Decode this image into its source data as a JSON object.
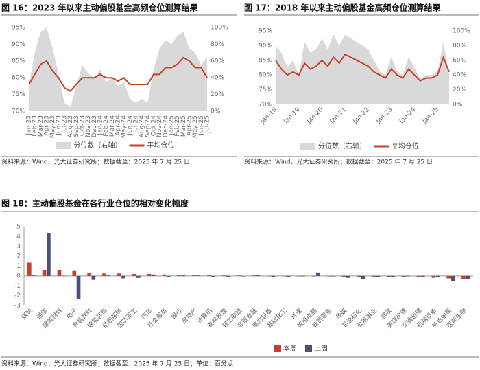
{
  "chart_data": [
    {
      "type": "combo",
      "title": "图 16：2023 年以来主动偏股基金高频仓位测算结果",
      "source": "资料来源：Wind，光大证券研究所；数据截至：2025 年 7 月 25 日",
      "legend": "bottom",
      "categories": [
        "Jan-23",
        "Feb-23",
        "Mar-23",
        "Apr-23",
        "May-23",
        "Jun-23",
        "Jul-23",
        "Aug-23",
        "Sep-23",
        "Oct-23",
        "Nov-23",
        "Dec-23",
        "Jan-24",
        "Feb-24",
        "Mar-24",
        "Apr-24",
        "May-24",
        "Jun-24",
        "Jul-24",
        "Aug-24",
        "Sep-24",
        "Oct-24",
        "Nov-24",
        "Dec-24",
        "Jan-25",
        "Feb-25",
        "Mar-25",
        "Apr-25",
        "May-25",
        "Jun-25",
        "Jul-25"
      ],
      "series": [
        {
          "name": "分位数（右轴）",
          "kind": "area",
          "axis": "y2",
          "color": "#d9d9d9",
          "values": [
            30,
            70,
            95,
            100,
            75,
            45,
            10,
            5,
            30,
            55,
            45,
            40,
            50,
            35,
            40,
            30,
            35,
            15,
            10,
            15,
            10,
            50,
            75,
            85,
            80,
            90,
            95,
            75,
            70,
            55,
            65
          ]
        },
        {
          "name": "平均仓位",
          "kind": "line",
          "color": "#c8402a",
          "values": [
            78,
            81,
            84,
            85,
            82,
            80,
            77,
            76,
            78,
            80,
            80,
            80,
            81,
            80,
            80,
            79,
            80,
            78,
            78,
            78,
            78,
            81,
            81,
            83,
            83,
            84,
            86,
            85,
            83,
            83,
            80
          ]
        }
      ],
      "ylim": [
        70,
        95
      ],
      "yticks": [
        {
          "value": 70,
          "label": "70%"
        },
        {
          "value": 75,
          "label": "75%"
        },
        {
          "value": 80,
          "label": "80%"
        },
        {
          "value": 85,
          "label": "85%"
        },
        {
          "value": 90,
          "label": "90%"
        },
        {
          "value": 95,
          "label": "95%"
        }
      ],
      "y2lim": [
        0,
        100
      ],
      "y2ticks": [
        {
          "value": 0,
          "label": "0%"
        },
        {
          "value": 20,
          "label": "20%"
        },
        {
          "value": 40,
          "label": "40%"
        },
        {
          "value": 60,
          "label": "60%"
        },
        {
          "value": 80,
          "label": "80%"
        },
        {
          "value": 100,
          "label": "100%"
        }
      ]
    },
    {
      "type": "combo",
      "title": "图 17：2018 年以来主动偏股基金高频仓位测算结果",
      "source": "资料来源：Wind，光大证券研究所；数据截至：2025 年 7 月 25 日",
      "legend": "bottom",
      "categories": [
        "Jan-18",
        null,
        null,
        null,
        "Jan-19",
        null,
        null,
        null,
        "Jan-20",
        null,
        null,
        null,
        "Jan-21",
        null,
        null,
        null,
        "Jan-22",
        null,
        null,
        null,
        "Jan-23",
        null,
        null,
        null,
        "Jan-24",
        null,
        null,
        null,
        "Jan-25",
        null,
        null
      ],
      "series": [
        {
          "name": "分位数（右轴）",
          "kind": "area",
          "axis": "y2",
          "color": "#d9d9d9",
          "values": [
            80,
            70,
            50,
            60,
            40,
            85,
            70,
            75,
            90,
            75,
            95,
            80,
            95,
            90,
            85,
            80,
            75,
            60,
            45,
            40,
            65,
            45,
            40,
            65,
            50,
            35,
            40,
            40,
            45,
            85,
            40
          ]
        },
        {
          "name": "平均仓位",
          "kind": "line",
          "color": "#c8402a",
          "values": [
            85,
            82,
            80,
            81,
            80,
            84,
            82,
            83,
            85,
            83,
            86,
            84,
            87,
            86,
            85,
            84,
            83,
            81,
            80,
            79,
            82,
            80,
            79,
            82,
            80,
            78,
            79,
            79,
            80,
            86,
            81
          ]
        }
      ],
      "ylim": [
        70,
        95
      ],
      "yticks": [
        {
          "value": 70,
          "label": "70%"
        },
        {
          "value": 75,
          "label": "75%"
        },
        {
          "value": 80,
          "label": "80%"
        },
        {
          "value": 85,
          "label": "85%"
        },
        {
          "value": 90,
          "label": "90%"
        },
        {
          "value": 95,
          "label": "95%"
        }
      ],
      "y2lim": [
        0,
        100
      ],
      "y2ticks": [
        {
          "value": 0,
          "label": "0%"
        },
        {
          "value": 20,
          "label": "20%"
        },
        {
          "value": 40,
          "label": "40%"
        },
        {
          "value": 60,
          "label": "60%"
        },
        {
          "value": 80,
          "label": "80%"
        },
        {
          "value": 100,
          "label": "100%"
        }
      ]
    },
    {
      "type": "bar",
      "title": "图 18：主动偏股基金在各行业仓位的相对变化幅度",
      "source": "资料来源：Wind，光大证券研究所；数据截至：2025 年 7 月 25 日；单位：百分点",
      "legend": "bottom-right",
      "categories": [
        "煤炭",
        "通信",
        "建筑材料",
        "电子",
        "食品饮料",
        "建筑装饰",
        "纺织服饰",
        "国防军工",
        "汽车",
        "社会服务",
        "银行",
        "房地产",
        "计算机",
        "农林牧渔",
        "轻工制造",
        "非银金融",
        "电力设备",
        "基础化工",
        "环保",
        "家用电器",
        "商贸零售",
        "传媒",
        "石油石化",
        "公用事业",
        "钢铁",
        "美容护理",
        "交通运输",
        "机械设备",
        "有色金属",
        "医药生物"
      ],
      "series": [
        {
          "name": "本周",
          "color": "#c8402a",
          "values": [
            1.35,
            0.6,
            0.55,
            0.5,
            0.3,
            0.25,
            0.25,
            0.2,
            0.2,
            0.15,
            0.1,
            0.1,
            0.1,
            0.05,
            0.05,
            0.05,
            0,
            0,
            -0.05,
            -0.05,
            -0.05,
            -0.1,
            -0.1,
            -0.1,
            -0.1,
            -0.15,
            -0.15,
            -0.2,
            -0.25,
            -0.35
          ]
        },
        {
          "name": "上周",
          "color": "#4b4f7a",
          "values": [
            0.05,
            4.35,
            0,
            -2.3,
            -0.4,
            0.05,
            -0.25,
            -0.2,
            0.15,
            -0.1,
            0.1,
            0.05,
            -0.1,
            -0.1,
            -0.05,
            0.1,
            -0.15,
            -0.1,
            -0.05,
            0.35,
            -0.05,
            -0.2,
            -0.35,
            -0.15,
            -0.1,
            -0.05,
            -0.1,
            -0.1,
            -0.55,
            -0.3
          ]
        }
      ],
      "ylim": [
        -3,
        5
      ],
      "yticks": [
        -3,
        -2,
        -1,
        0,
        1,
        2,
        3,
        4,
        5
      ]
    }
  ]
}
